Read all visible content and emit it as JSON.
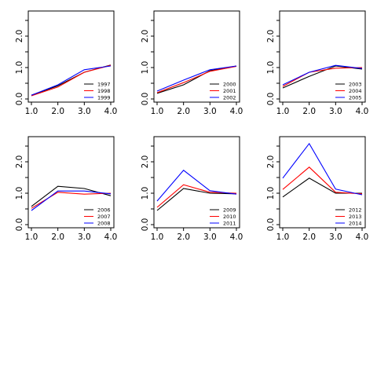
{
  "colors": {
    "black": "#000000",
    "red": "#ff0000",
    "blue": "#0000ff"
  },
  "chart_data": [
    {
      "type": "line",
      "x": [
        1,
        2,
        3,
        4
      ],
      "xticks": [
        "1.0",
        "2.0",
        "3.0",
        "4.0"
      ],
      "yticks": [
        "0.0",
        "1.0",
        "2.0"
      ],
      "ylim": [
        0,
        2.7
      ],
      "xlim": [
        1,
        4
      ],
      "legend_position": "bottom-right",
      "series": [
        {
          "name": "1997",
          "color": "#000000",
          "values": [
            0.12,
            0.42,
            0.85,
            1.08
          ]
        },
        {
          "name": "1998",
          "color": "#ff0000",
          "values": [
            0.1,
            0.38,
            0.85,
            1.07
          ]
        },
        {
          "name": "1999",
          "color": "#0000ff",
          "values": [
            0.12,
            0.45,
            0.93,
            1.05
          ]
        }
      ]
    },
    {
      "type": "line",
      "x": [
        1,
        2,
        3,
        4
      ],
      "xticks": [
        "1.0",
        "2.0",
        "3.0",
        "4.0"
      ],
      "yticks": [
        "0.0",
        "1.0",
        "2.0"
      ],
      "ylim": [
        0,
        2.7
      ],
      "xlim": [
        1,
        4
      ],
      "legend_position": "bottom-right",
      "series": [
        {
          "name": "2000",
          "color": "#000000",
          "values": [
            0.18,
            0.45,
            0.9,
            1.05
          ]
        },
        {
          "name": "2001",
          "color": "#ff0000",
          "values": [
            0.2,
            0.52,
            0.88,
            1.04
          ]
        },
        {
          "name": "2002",
          "color": "#0000ff",
          "values": [
            0.25,
            0.6,
            0.93,
            1.05
          ]
        }
      ]
    },
    {
      "type": "line",
      "x": [
        1,
        2,
        3,
        4
      ],
      "xticks": [
        "1.0",
        "2.0",
        "3.0",
        "4.0"
      ],
      "yticks": [
        "0.0",
        "1.0",
        "2.0"
      ],
      "ylim": [
        0,
        2.7
      ],
      "xlim": [
        1,
        4
      ],
      "legend_position": "bottom-right",
      "series": [
        {
          "name": "2003",
          "color": "#000000",
          "values": [
            0.35,
            0.72,
            1.05,
            0.95
          ]
        },
        {
          "name": "2004",
          "color": "#ff0000",
          "values": [
            0.4,
            0.85,
            0.98,
            1.0
          ]
        },
        {
          "name": "2005",
          "color": "#0000ff",
          "values": [
            0.45,
            0.85,
            1.07,
            0.97
          ]
        }
      ]
    },
    {
      "type": "line",
      "x": [
        1,
        2,
        3,
        4
      ],
      "xticks": [
        "1.0",
        "2.0",
        "3.0",
        "4.0"
      ],
      "yticks": [
        "0.0",
        "1.0",
        "2.0"
      ],
      "ylim": [
        0,
        2.7
      ],
      "xlim": [
        1,
        4
      ],
      "legend_position": "bottom-right",
      "series": [
        {
          "name": "2006",
          "color": "#000000",
          "values": [
            0.58,
            1.22,
            1.15,
            0.92
          ]
        },
        {
          "name": "2007",
          "color": "#ff0000",
          "values": [
            0.52,
            1.03,
            0.97,
            1.0
          ]
        },
        {
          "name": "2008",
          "color": "#0000ff",
          "values": [
            0.45,
            1.07,
            1.07,
            0.98
          ]
        }
      ]
    },
    {
      "type": "line",
      "x": [
        1,
        2,
        3,
        4
      ],
      "xticks": [
        "1.0",
        "2.0",
        "3.0",
        "4.0"
      ],
      "yticks": [
        "0.0",
        "1.0",
        "2.0"
      ],
      "ylim": [
        0,
        2.7
      ],
      "xlim": [
        1,
        4
      ],
      "legend_position": "bottom-right",
      "series": [
        {
          "name": "2009",
          "color": "#000000",
          "values": [
            0.45,
            1.15,
            1.0,
            0.98
          ]
        },
        {
          "name": "2010",
          "color": "#ff0000",
          "values": [
            0.55,
            1.27,
            1.03,
            1.0
          ]
        },
        {
          "name": "2011",
          "color": "#0000ff",
          "values": [
            0.75,
            1.73,
            1.08,
            0.97
          ]
        }
      ]
    },
    {
      "type": "line",
      "x": [
        1,
        2,
        3,
        4
      ],
      "xticks": [
        "1.0",
        "2.0",
        "3.0",
        "4.0"
      ],
      "yticks": [
        "0.0",
        "1.0",
        "2.0"
      ],
      "ylim": [
        0,
        2.7
      ],
      "xlim": [
        1,
        4
      ],
      "legend_position": "bottom-right",
      "series": [
        {
          "name": "2012",
          "color": "#000000",
          "values": [
            0.88,
            1.48,
            1.0,
            1.0
          ]
        },
        {
          "name": "2013",
          "color": "#ff0000",
          "values": [
            1.12,
            1.83,
            1.03,
            0.98
          ]
        },
        {
          "name": "2014",
          "color": "#0000ff",
          "values": [
            1.48,
            2.58,
            1.13,
            0.95
          ]
        }
      ]
    }
  ]
}
